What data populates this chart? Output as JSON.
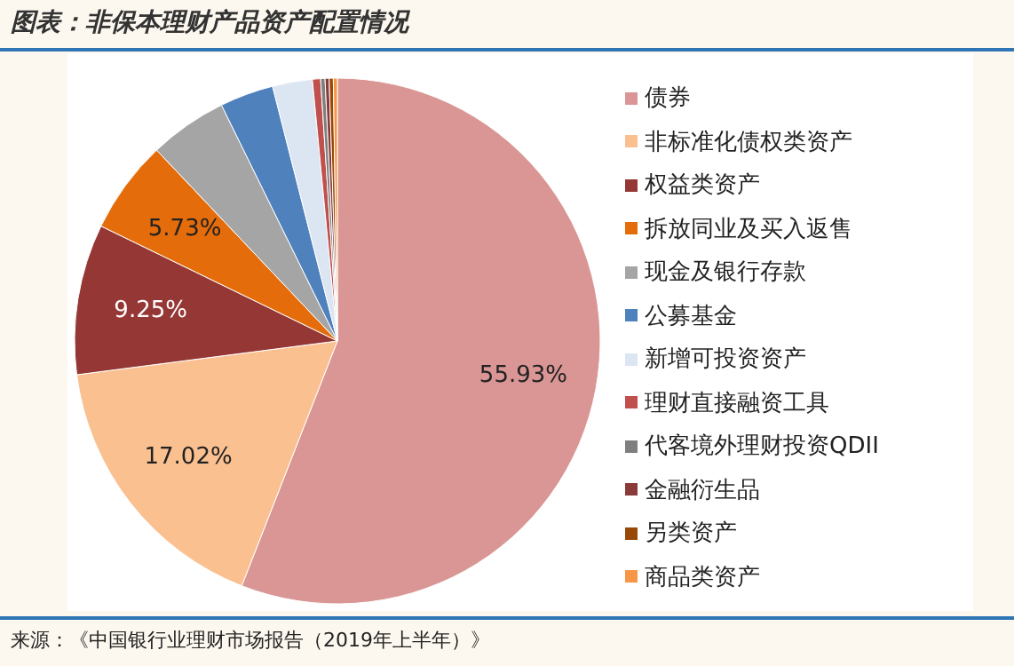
{
  "chart_data": {
    "type": "pie",
    "title": "图表：非保本理财产品资产配置情况",
    "categories": [
      "债券",
      "非标准化债权类资产",
      "权益类资产",
      "拆放同业及买入返售",
      "现金及银行存款",
      "公募基金",
      "新增可投资资产",
      "理财直接融资工具",
      "代客境外理财投资QDII",
      "金融衍生品",
      "另类资产",
      "商品类资产"
    ],
    "values": [
      55.93,
      17.02,
      9.25,
      5.73,
      4.8,
      3.3,
      2.45,
      0.5,
      0.27,
      0.25,
      0.25,
      0.25
    ],
    "colors": [
      "#d99694",
      "#fac090",
      "#953735",
      "#e46c0a",
      "#a5a5a5",
      "#4f81bd",
      "#dce6f2",
      "#c0504d",
      "#7f7f7f",
      "#8b3a3a",
      "#984807",
      "#f79646"
    ],
    "value_labels": [
      "55.93%",
      "17.02%",
      "9.25%",
      "5.73%",
      null,
      null,
      null,
      null,
      null,
      null,
      null,
      null
    ],
    "legend": "right",
    "annotations": [
      "来源：《中国银行业理财市场报告（2019年上半年）》"
    ]
  }
}
